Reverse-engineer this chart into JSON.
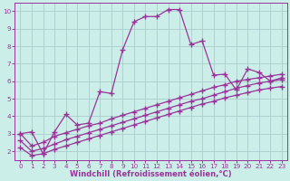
{
  "xlabel": "Windchill (Refroidissement éolien,°C)",
  "bg_color": "#cceee8",
  "grid_color": "#aacccc",
  "line_color": "#993399",
  "xlim": [
    -0.5,
    23.5
  ],
  "ylim": [
    1.5,
    10.5
  ],
  "xticks": [
    0,
    1,
    2,
    3,
    4,
    5,
    6,
    7,
    8,
    9,
    10,
    11,
    12,
    13,
    14,
    15,
    16,
    17,
    18,
    19,
    20,
    21,
    22,
    23
  ],
  "yticks": [
    2,
    3,
    4,
    5,
    6,
    7,
    8,
    9,
    10
  ],
  "line1_x": [
    0,
    1,
    2,
    3,
    4,
    5,
    6,
    7,
    8,
    9,
    10,
    11,
    12,
    13,
    14,
    15,
    16,
    17,
    18,
    19,
    20,
    21,
    22,
    23
  ],
  "line1_y": [
    3.0,
    3.1,
    1.85,
    3.1,
    4.1,
    3.5,
    3.6,
    5.4,
    5.3,
    7.8,
    9.4,
    9.7,
    9.7,
    10.1,
    10.1,
    8.1,
    8.3,
    6.35,
    6.4,
    5.5,
    6.7,
    6.5,
    6.0,
    6.2
  ],
  "line2_x": [
    0,
    1,
    2,
    3,
    4,
    5,
    6,
    7,
    8,
    9,
    10,
    11,
    12,
    13,
    14,
    15,
    16,
    17,
    18,
    19,
    20,
    21,
    22,
    23
  ],
  "line2_y": [
    3.0,
    2.3,
    2.5,
    2.85,
    3.05,
    3.25,
    3.45,
    3.6,
    3.85,
    4.05,
    4.25,
    4.45,
    4.65,
    4.85,
    5.05,
    5.25,
    5.45,
    5.65,
    5.8,
    6.0,
    6.1,
    6.2,
    6.3,
    6.4
  ],
  "line3_x": [
    0,
    1,
    2,
    3,
    4,
    5,
    6,
    7,
    8,
    9,
    10,
    11,
    12,
    13,
    14,
    15,
    16,
    17,
    18,
    19,
    20,
    21,
    22,
    23
  ],
  "line3_y": [
    2.6,
    2.0,
    2.15,
    2.4,
    2.65,
    2.85,
    3.05,
    3.25,
    3.45,
    3.65,
    3.85,
    4.05,
    4.25,
    4.45,
    4.65,
    4.85,
    5.0,
    5.2,
    5.4,
    5.6,
    5.75,
    5.9,
    6.0,
    6.1
  ],
  "line4_x": [
    0,
    1,
    2,
    3,
    4,
    5,
    6,
    7,
    8,
    9,
    10,
    11,
    12,
    13,
    14,
    15,
    16,
    17,
    18,
    19,
    20,
    21,
    22,
    23
  ],
  "line4_y": [
    2.2,
    1.75,
    1.85,
    2.1,
    2.3,
    2.5,
    2.7,
    2.9,
    3.1,
    3.3,
    3.5,
    3.7,
    3.9,
    4.1,
    4.3,
    4.5,
    4.7,
    4.85,
    5.05,
    5.2,
    5.35,
    5.5,
    5.6,
    5.7
  ],
  "marker": "+",
  "markersize": 4,
  "linewidth": 0.9,
  "tick_fontsize": 5.2,
  "label_fontsize": 6.0
}
